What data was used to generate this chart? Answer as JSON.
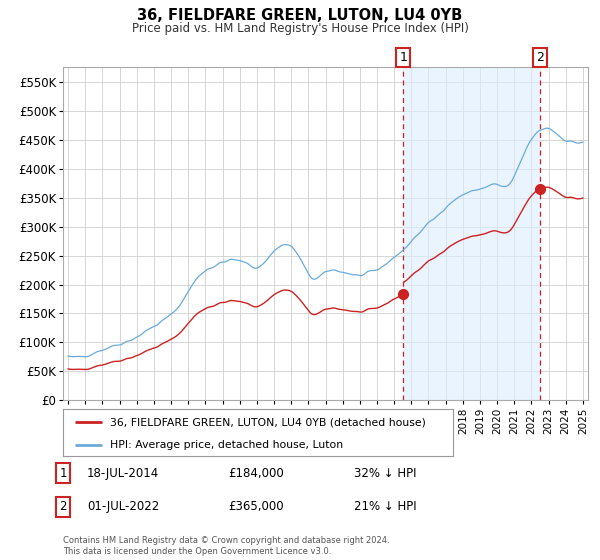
{
  "title": "36, FIELDFARE GREEN, LUTON, LU4 0YB",
  "subtitle": "Price paid vs. HM Land Registry's House Price Index (HPI)",
  "hpi_label": "HPI: Average price, detached house, Luton",
  "price_label": "36, FIELDFARE GREEN, LUTON, LU4 0YB (detached house)",
  "sale1_date": "18-JUL-2014",
  "sale1_price": 184000,
  "sale1_pct": "32% ↓ HPI",
  "sale2_date": "01-JUL-2022",
  "sale2_price": 365000,
  "sale2_pct": "21% ↓ HPI",
  "copyright": "Contains HM Land Registry data © Crown copyright and database right 2024.\nThis data is licensed under the Open Government Licence v3.0.",
  "hpi_color": "#6aabda",
  "hpi_fill_color": "#ddeeff",
  "price_color": "#cc2222",
  "vline_color": "#cc2222",
  "bg_color": "#ffffff",
  "grid_color": "#d0d0d0",
  "ylim": [
    0,
    575000
  ],
  "yticks": [
    0,
    50000,
    100000,
    150000,
    200000,
    250000,
    300000,
    350000,
    400000,
    450000,
    500000,
    550000
  ],
  "sale1_year": 2014.54,
  "sale2_year": 2022.5,
  "xlim_start": 1994.7,
  "xlim_end": 2025.3
}
